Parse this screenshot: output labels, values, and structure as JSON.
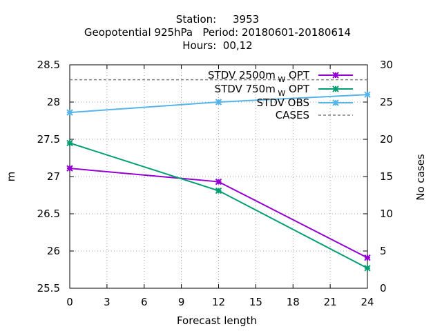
{
  "chart_data": {
    "type": "line",
    "title_lines": [
      "Station:     3953",
      "Geopotential 925hPa   Period: 20180601-20180614",
      "Hours:  00,12"
    ],
    "xlabel": "Forecast length",
    "ylabel": "m",
    "y2label": "No cases",
    "xlim": [
      0,
      24
    ],
    "ylim": [
      25.5,
      28.5
    ],
    "y2lim": [
      0,
      30
    ],
    "xticks": [
      "0",
      "3",
      "6",
      "9",
      "12",
      "15",
      "18",
      "21",
      "24"
    ],
    "yticks": [
      "25.5",
      "26",
      "26.5",
      "27",
      "27.5",
      "28",
      "28.5"
    ],
    "y2ticks": [
      "0",
      "5",
      "10",
      "15",
      "20",
      "25",
      "30"
    ],
    "grid": "dotted",
    "legend_position": "top-right",
    "x": [
      0,
      12,
      24
    ],
    "series": [
      {
        "name": "STDV 2500m",
        "subscript": "W",
        "suffix": "OPT",
        "color": "#9400d3",
        "values": [
          27.11,
          26.93,
          25.91
        ],
        "axis": "y"
      },
      {
        "name": "STDV 750m",
        "subscript": "W",
        "suffix": "OPT",
        "color": "#009e73",
        "values": [
          27.45,
          26.81,
          25.77
        ],
        "axis": "y"
      },
      {
        "name": "STDV OBS",
        "subscript": "",
        "suffix": "",
        "color": "#56b4e9",
        "values": [
          27.86,
          28.0,
          28.1
        ],
        "axis": "y"
      },
      {
        "name": "CASES",
        "subscript": "",
        "suffix": "",
        "color": "#808080",
        "dashed": true,
        "values": [
          28,
          28,
          28
        ],
        "axis": "y2"
      }
    ]
  }
}
